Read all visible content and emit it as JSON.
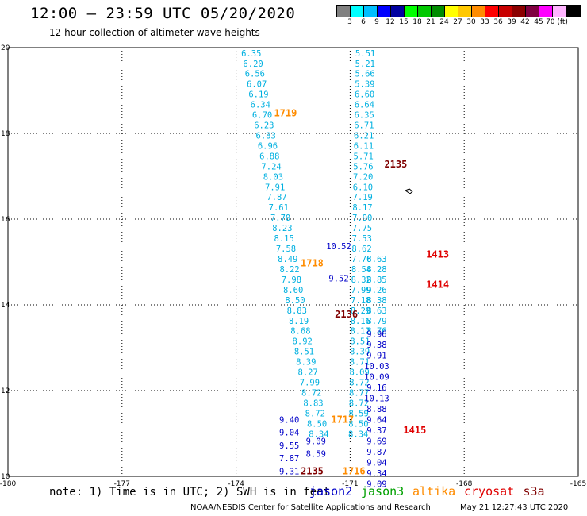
{
  "header": {
    "title": "12:00 — 23:59 UTC 05/20/2020",
    "subtitle": "12 hour collection of altimeter wave heights"
  },
  "colorbar": {
    "colors": [
      "#808080",
      "#00ffff",
      "#00bfff",
      "#0000ff",
      "#0000a0",
      "#00ff00",
      "#00c800",
      "#008c00",
      "#ffff00",
      "#ffc800",
      "#ff8c00",
      "#ff0000",
      "#c80000",
      "#8b0000",
      "#800040",
      "#ff00ff",
      "#ffb4ff",
      "#000000"
    ],
    "labels": [
      "3",
      "6",
      "9",
      "12",
      "15",
      "18",
      "21",
      "24",
      "27",
      "30",
      "33",
      "36",
      "39",
      "42",
      "45",
      "70 (ft)"
    ]
  },
  "map": {
    "x_ticks": [
      "-180",
      "-177",
      "-174",
      "-171",
      "-168",
      "-165"
    ],
    "y_ticks": [
      "20",
      "18",
      "16",
      "14",
      "12",
      "10"
    ],
    "lon_range": [
      -180,
      -165
    ],
    "lat_range": [
      10,
      20
    ],
    "tracks": [
      {
        "color": "#00b0e0",
        "lon": -173.6,
        "latStart": 19.8,
        "latStep": -0.24,
        "values": [
          "6.35",
          "6.20",
          "6.56",
          "6.07",
          "6.19",
          "6.34",
          "6.70",
          "6.23",
          "6.83",
          "6.96",
          "6.88",
          "7.24",
          "8.03",
          "7.91",
          "7.87",
          "7.61",
          "7.70",
          "8.23",
          "8.15",
          "7.58",
          "8.49",
          "8.22",
          "7.98",
          "8.60",
          "8.50",
          "8.83",
          "8.19",
          "8.68",
          "8.92",
          "8.51",
          "8.39",
          "8.27",
          "7.99",
          "8.72",
          "8.83",
          "8.72",
          "8.50",
          "8.34"
        ]
      },
      {
        "color": "#00b0e0",
        "lon": -170.6,
        "latStart": 19.8,
        "latStep": -0.24,
        "values": [
          "5.51",
          "5.21",
          "5.66",
          "5.39",
          "6.60",
          "6.64",
          "6.35",
          "6.71",
          "6.21",
          "6.11",
          "5.71",
          "5.76",
          "7.20",
          "6.10",
          "7.19",
          "8.17",
          "7.90",
          "7.75",
          "7.53",
          "8.62",
          "7.76",
          "8.54",
          "8.32",
          "7.99",
          "7.18",
          "8.29",
          "8.16",
          "8.12",
          "8.51",
          "8.39",
          "8.71",
          "8.09",
          "8.72",
          "8.77",
          "8.72",
          "8.59",
          "8.50",
          "8.34"
        ]
      },
      {
        "color": "#0000c8",
        "lon": -171.3,
        "latStart": 15.3,
        "latStep": -0.25,
        "values": [
          "10.52",
          "",
          "",
          "9.52"
        ]
      },
      {
        "color": "#00b0e0",
        "lon": -170.3,
        "latStart": 15.0,
        "latStep": -0.24,
        "values": [
          "8.63",
          "8.28",
          "8.85",
          "9.26",
          "8.38",
          "8.63",
          "8.79",
          "8.76"
        ]
      },
      {
        "color": "#0000c8",
        "lon": -170.3,
        "latStart": 13.25,
        "latStep": -0.25,
        "values": [
          "9.96",
          "9.38",
          "9.91",
          "10.03",
          "10.09",
          "9.16",
          "10.13",
          "8.88",
          "9.64",
          "9.37",
          "9.69",
          "9.87",
          "9.04",
          "9.34",
          "9.09"
        ]
      },
      {
        "color": "#0000c8",
        "lon": -172.6,
        "latStart": 11.25,
        "latStep": -0.3,
        "values": [
          "9.40",
          "9.04",
          "9.55",
          "7.87",
          "9.31"
        ]
      },
      {
        "color": "#0000c8",
        "lon": -171.9,
        "latStart": 10.75,
        "latStep": -0.3,
        "values": [
          "9.09",
          "8.59"
        ]
      }
    ],
    "labels": [
      {
        "text": "1719",
        "color": "#ff8c00",
        "lon": -172.7,
        "lat": 18.4
      },
      {
        "text": "2135",
        "color": "#800000",
        "lon": -169.8,
        "lat": 17.2
      },
      {
        "text": "1413",
        "color": "#e00000",
        "lon": -168.7,
        "lat": 15.1
      },
      {
        "text": "1718",
        "color": "#ff8c00",
        "lon": -172.0,
        "lat": 14.9
      },
      {
        "text": "1414",
        "color": "#e00000",
        "lon": -168.7,
        "lat": 14.4
      },
      {
        "text": "2136",
        "color": "#800000",
        "lon": -171.1,
        "lat": 13.7
      },
      {
        "text": "1717",
        "color": "#ff8c00",
        "lon": -171.2,
        "lat": 11.25
      },
      {
        "text": "1415",
        "color": "#e00000",
        "lon": -169.3,
        "lat": 11.0
      },
      {
        "text": "2135",
        "color": "#800000",
        "lon": -172.0,
        "lat": 10.05
      },
      {
        "text": "1716",
        "color": "#ff8c00",
        "lon": -170.9,
        "lat": 10.05
      }
    ]
  },
  "footer": {
    "note": "note: 1) Time is in UTC; 2) SWH is in feet",
    "satellites": [
      {
        "name": "jason2",
        "color": "#0000c8"
      },
      {
        "name": "jason3",
        "color": "#00a000"
      },
      {
        "name": "altika",
        "color": "#ff8c00"
      },
      {
        "name": "cryosat",
        "color": "#e00000"
      },
      {
        "name": "s3a",
        "color": "#800000"
      }
    ],
    "credit": "NOAA/NESDIS Center for Satellite Applications and Research",
    "timestamp": "May 21 12:27:43 UTC 2020"
  }
}
